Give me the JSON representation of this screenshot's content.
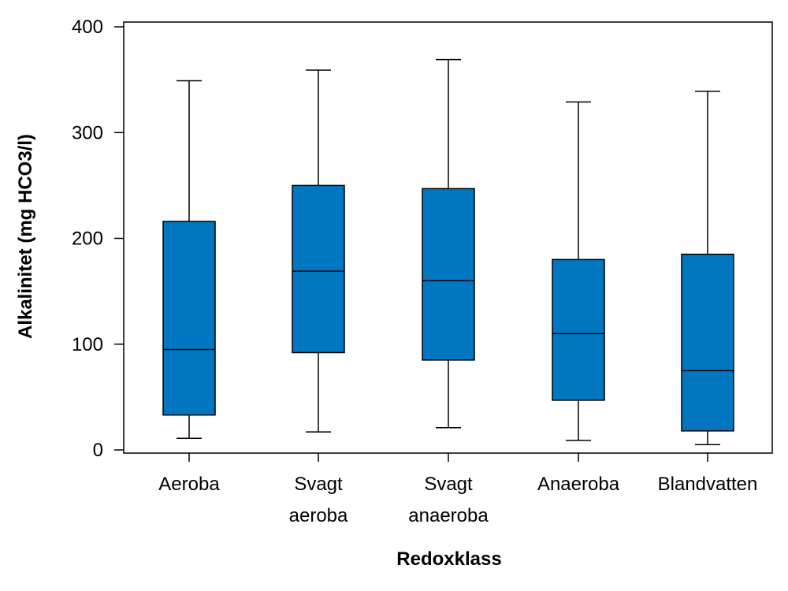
{
  "chart_data": {
    "type": "box",
    "title": "",
    "xlabel": "Redoxklass",
    "ylabel": "Alkalinitet (mg HCO3/l)",
    "ylim": [
      0,
      400
    ],
    "yticks": [
      0,
      100,
      200,
      300,
      400
    ],
    "box_color": "#0077C0",
    "categories": [
      {
        "label_lines": [
          "Aeroba"
        ],
        "min": 11,
        "q1": 33,
        "median": 95,
        "q3": 216,
        "max": 349
      },
      {
        "label_lines": [
          "Svagt",
          "aeroba"
        ],
        "min": 17,
        "q1": 92,
        "median": 169,
        "q3": 250,
        "max": 359
      },
      {
        "label_lines": [
          "Svagt",
          "anaeroba"
        ],
        "min": 21,
        "q1": 85,
        "median": 160,
        "q3": 247,
        "max": 369
      },
      {
        "label_lines": [
          "Anaeroba"
        ],
        "min": 9,
        "q1": 47,
        "median": 110,
        "q3": 180,
        "max": 329
      },
      {
        "label_lines": [
          "Blandvatten"
        ],
        "min": 5,
        "q1": 18,
        "median": 75,
        "q3": 185,
        "max": 339
      }
    ]
  }
}
